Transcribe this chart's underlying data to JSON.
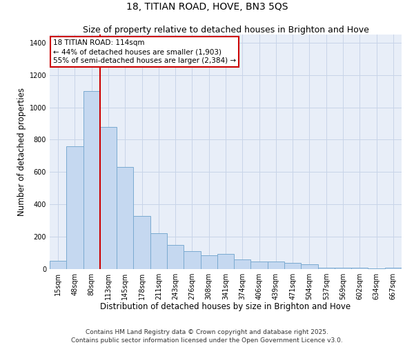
{
  "title_line1": "18, TITIAN ROAD, HOVE, BN3 5QS",
  "title_line2": "Size of property relative to detached houses in Brighton and Hove",
  "xlabel": "Distribution of detached houses by size in Brighton and Hove",
  "ylabel": "Number of detached properties",
  "categories": [
    "15sqm",
    "48sqm",
    "80sqm",
    "113sqm",
    "145sqm",
    "178sqm",
    "211sqm",
    "243sqm",
    "276sqm",
    "308sqm",
    "341sqm",
    "374sqm",
    "406sqm",
    "439sqm",
    "471sqm",
    "504sqm",
    "537sqm",
    "569sqm",
    "602sqm",
    "634sqm",
    "667sqm"
  ],
  "values": [
    50,
    760,
    1100,
    880,
    630,
    330,
    220,
    150,
    110,
    85,
    95,
    60,
    45,
    45,
    40,
    30,
    10,
    10,
    10,
    5,
    10
  ],
  "bar_color": "#c5d8f0",
  "bar_edge_color": "#7aaad0",
  "grid_color": "#c8d4e8",
  "bg_color": "#e8eef8",
  "vline_color": "#cc0000",
  "annotation_text": "18 TITIAN ROAD: 114sqm\n← 44% of detached houses are smaller (1,903)\n55% of semi-detached houses are larger (2,384) →",
  "annotation_box_color": "#cc0000",
  "ylim": [
    0,
    1450
  ],
  "yticks": [
    0,
    200,
    400,
    600,
    800,
    1000,
    1200,
    1400
  ],
  "footer": "Contains HM Land Registry data © Crown copyright and database right 2025.\nContains public sector information licensed under the Open Government Licence v3.0.",
  "title_fontsize": 10,
  "subtitle_fontsize": 9,
  "axis_label_fontsize": 8.5,
  "tick_fontsize": 7,
  "annotation_fontsize": 7.5,
  "footer_fontsize": 6.5
}
